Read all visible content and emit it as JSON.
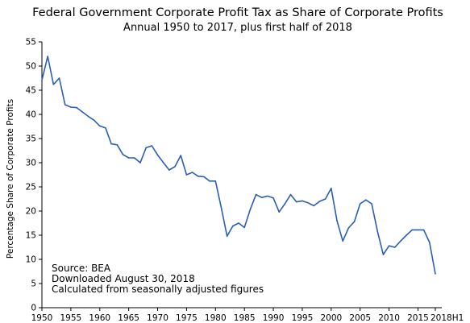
{
  "chart_data": {
    "type": "line",
    "title": "Federal Government Corporate Profit Tax as Share of Corporate Profits",
    "subtitle": "Annual 1950 to 2017, plus first half of 2018",
    "xlabel": "",
    "ylabel": "Percentage Share of Corporate Profits",
    "xlim": [
      1950,
      2018
    ],
    "ylim": [
      0,
      55
    ],
    "grid": false,
    "x_tick_labels": [
      "1950",
      "1955",
      "1960",
      "1965",
      "1970",
      "1975",
      "1980",
      "1985",
      "1990",
      "1995",
      "2000",
      "2005",
      "2010",
      "2015",
      "2018H1"
    ],
    "y_tick_labels": [
      "0",
      "5",
      "10",
      "15",
      "20",
      "25",
      "30",
      "35",
      "40",
      "45",
      "50",
      "55"
    ],
    "notes": [
      "Source:  BEA",
      "Downloaded August 30, 2018",
      "Calculated from seasonally adjusted figures"
    ],
    "line_color": "#2b5fb4",
    "x": [
      1950,
      1951,
      1952,
      1953,
      1954,
      1955,
      1956,
      1957,
      1958,
      1959,
      1960,
      1961,
      1962,
      1963,
      1964,
      1965,
      1966,
      1967,
      1968,
      1969,
      1970,
      1971,
      1972,
      1973,
      1974,
      1975,
      1976,
      1977,
      1978,
      1979,
      1980,
      1981,
      1982,
      1983,
      1984,
      1985,
      1986,
      1987,
      1988,
      1989,
      1990,
      1991,
      1992,
      1993,
      1994,
      1995,
      1996,
      1997,
      1998,
      1999,
      2000,
      2001,
      2002,
      2003,
      2004,
      2005,
      2006,
      2007,
      2008,
      2009,
      2010,
      2011,
      2012,
      2013,
      2014,
      2015,
      2016,
      2017,
      2018
    ],
    "y": [
      47.1,
      52.0,
      46.2,
      47.5,
      42.0,
      41.5,
      41.4,
      40.5,
      39.6,
      38.8,
      37.6,
      37.2,
      33.9,
      33.7,
      31.7,
      31.0,
      31.0,
      30.0,
      33.1,
      33.5,
      31.6,
      30.0,
      28.5,
      29.2,
      31.5,
      27.5,
      28.0,
      27.2,
      27.1,
      26.2,
      26.2,
      20.7,
      14.8,
      16.9,
      17.5,
      16.6,
      20.3,
      23.4,
      22.8,
      23.1,
      22.7,
      19.8,
      21.5,
      23.4,
      21.9,
      22.1,
      21.7,
      21.1,
      22.0,
      22.5,
      24.7,
      18.0,
      13.8,
      16.5,
      17.8,
      21.5,
      22.3,
      21.5,
      15.8,
      11.0,
      12.8,
      12.5,
      13.8,
      15.0,
      16.1,
      16.1,
      16.1,
      13.5,
      7.0
    ]
  }
}
